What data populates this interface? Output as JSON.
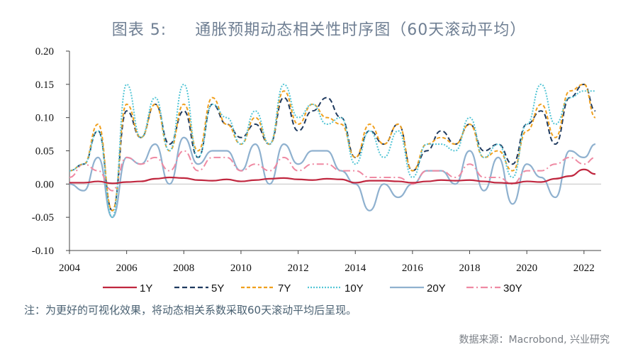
{
  "title": {
    "prefix": "图表 5:",
    "main": "通胀预期动态相关性时序图（60天滚动平均）"
  },
  "note": "注：为更好的可视化效果，将动态相关系数采取60天滚动平均后呈现。",
  "source": "数据来源：Macrobond, 兴业研究",
  "chart_data": {
    "type": "line",
    "title": "通胀预期动态相关性时序图（60天滚动平均）",
    "xlabel": "",
    "ylabel": "",
    "xlim": [
      2004.0,
      2022.6
    ],
    "ylim": [
      -0.1,
      0.2
    ],
    "x_ticks": [
      "2004",
      "2006",
      "2008",
      "2010",
      "2012",
      "2014",
      "2016",
      "2018",
      "2020",
      "2022"
    ],
    "y_ticks": [
      "0.20",
      "0.15",
      "0.10",
      "0.05",
      "0.00",
      "-0.05",
      "-0.10"
    ],
    "legend_position": "bottom",
    "grid": false,
    "x": [
      2004.0,
      2004.5,
      2005.0,
      2005.5,
      2006.0,
      2006.5,
      2007.0,
      2007.5,
      2008.0,
      2008.5,
      2009.0,
      2009.5,
      2010.0,
      2010.5,
      2011.0,
      2011.5,
      2012.0,
      2012.5,
      2013.0,
      2013.5,
      2014.0,
      2014.5,
      2015.0,
      2015.5,
      2016.0,
      2016.5,
      2017.0,
      2017.5,
      2018.0,
      2018.5,
      2019.0,
      2019.5,
      2020.0,
      2020.5,
      2021.0,
      2021.5,
      2022.0,
      2022.4
    ],
    "series": [
      {
        "name": "1Y",
        "color": "#c0273f",
        "dash": "",
        "width": 2.2,
        "values": [
          0.002,
          0.002,
          0.004,
          0.001,
          0.003,
          0.004,
          0.008,
          0.01,
          0.009,
          0.006,
          0.005,
          0.007,
          0.004,
          0.006,
          0.008,
          0.009,
          0.007,
          0.006,
          0.008,
          0.007,
          0.002,
          0.005,
          0.005,
          0.004,
          0.002,
          0.004,
          0.006,
          0.005,
          0.006,
          0.004,
          0.002,
          0.001,
          0.004,
          0.003,
          0.008,
          0.012,
          0.022,
          0.015
        ]
      },
      {
        "name": "5Y",
        "color": "#1f3a5f",
        "dash": "7,4",
        "width": 2,
        "values": [
          0.02,
          0.03,
          0.08,
          -0.04,
          0.11,
          0.07,
          0.12,
          0.06,
          0.11,
          0.04,
          0.12,
          0.09,
          0.07,
          0.09,
          0.06,
          0.13,
          0.08,
          0.11,
          0.13,
          0.1,
          0.04,
          0.08,
          0.06,
          0.09,
          0.02,
          0.05,
          0.08,
          0.06,
          0.09,
          0.05,
          0.06,
          0.03,
          0.09,
          0.11,
          0.06,
          0.13,
          0.15,
          0.11
        ]
      },
      {
        "name": "7Y",
        "color": "#f0a01e",
        "dash": "5,3",
        "width": 2,
        "values": [
          0.02,
          0.03,
          0.09,
          -0.04,
          0.12,
          0.07,
          0.12,
          0.05,
          0.12,
          0.05,
          0.13,
          0.09,
          0.06,
          0.1,
          0.06,
          0.14,
          0.09,
          0.12,
          0.1,
          0.09,
          0.04,
          0.09,
          0.06,
          0.09,
          0.02,
          0.06,
          0.07,
          0.06,
          0.09,
          0.04,
          0.05,
          0.02,
          0.08,
          0.12,
          0.07,
          0.14,
          0.15,
          0.1
        ]
      },
      {
        "name": "10Y",
        "color": "#55c6d6",
        "dash": "2,2",
        "width": 2,
        "values": [
          0.02,
          0.03,
          0.08,
          -0.05,
          0.15,
          0.07,
          0.13,
          0.05,
          0.15,
          0.04,
          0.12,
          0.1,
          0.06,
          0.11,
          0.06,
          0.15,
          0.1,
          0.12,
          0.09,
          0.1,
          0.03,
          0.08,
          0.04,
          0.08,
          0.01,
          0.06,
          0.06,
          0.05,
          0.1,
          0.04,
          0.06,
          0.01,
          0.09,
          0.15,
          0.09,
          0.13,
          0.14,
          0.14
        ]
      },
      {
        "name": "20Y",
        "color": "#8fb1cf",
        "dash": "",
        "width": 2.2,
        "values": [
          0.0,
          -0.01,
          0.04,
          -0.05,
          0.04,
          0.03,
          0.06,
          0.0,
          0.07,
          0.03,
          0.05,
          0.05,
          0.02,
          0.06,
          0.0,
          0.06,
          0.03,
          0.05,
          0.05,
          0.02,
          0.0,
          -0.04,
          0.0,
          -0.02,
          0.0,
          0.02,
          0.02,
          0.0,
          0.05,
          -0.01,
          0.04,
          -0.03,
          0.03,
          0.01,
          -0.02,
          0.05,
          0.04,
          0.06
        ]
      },
      {
        "name": "30Y",
        "color": "#ef8aa3",
        "dash": "10,4,2,4",
        "width": 2,
        "values": [
          0.01,
          0.03,
          0.02,
          -0.01,
          0.04,
          0.03,
          0.04,
          0.02,
          0.05,
          0.02,
          0.04,
          0.04,
          0.02,
          0.03,
          0.02,
          0.04,
          0.02,
          0.03,
          0.03,
          0.02,
          0.02,
          0.01,
          0.01,
          0.01,
          0.0,
          0.02,
          0.02,
          0.01,
          0.03,
          0.01,
          0.01,
          0.0,
          0.02,
          0.02,
          0.03,
          0.04,
          0.03,
          0.04
        ]
      }
    ]
  }
}
